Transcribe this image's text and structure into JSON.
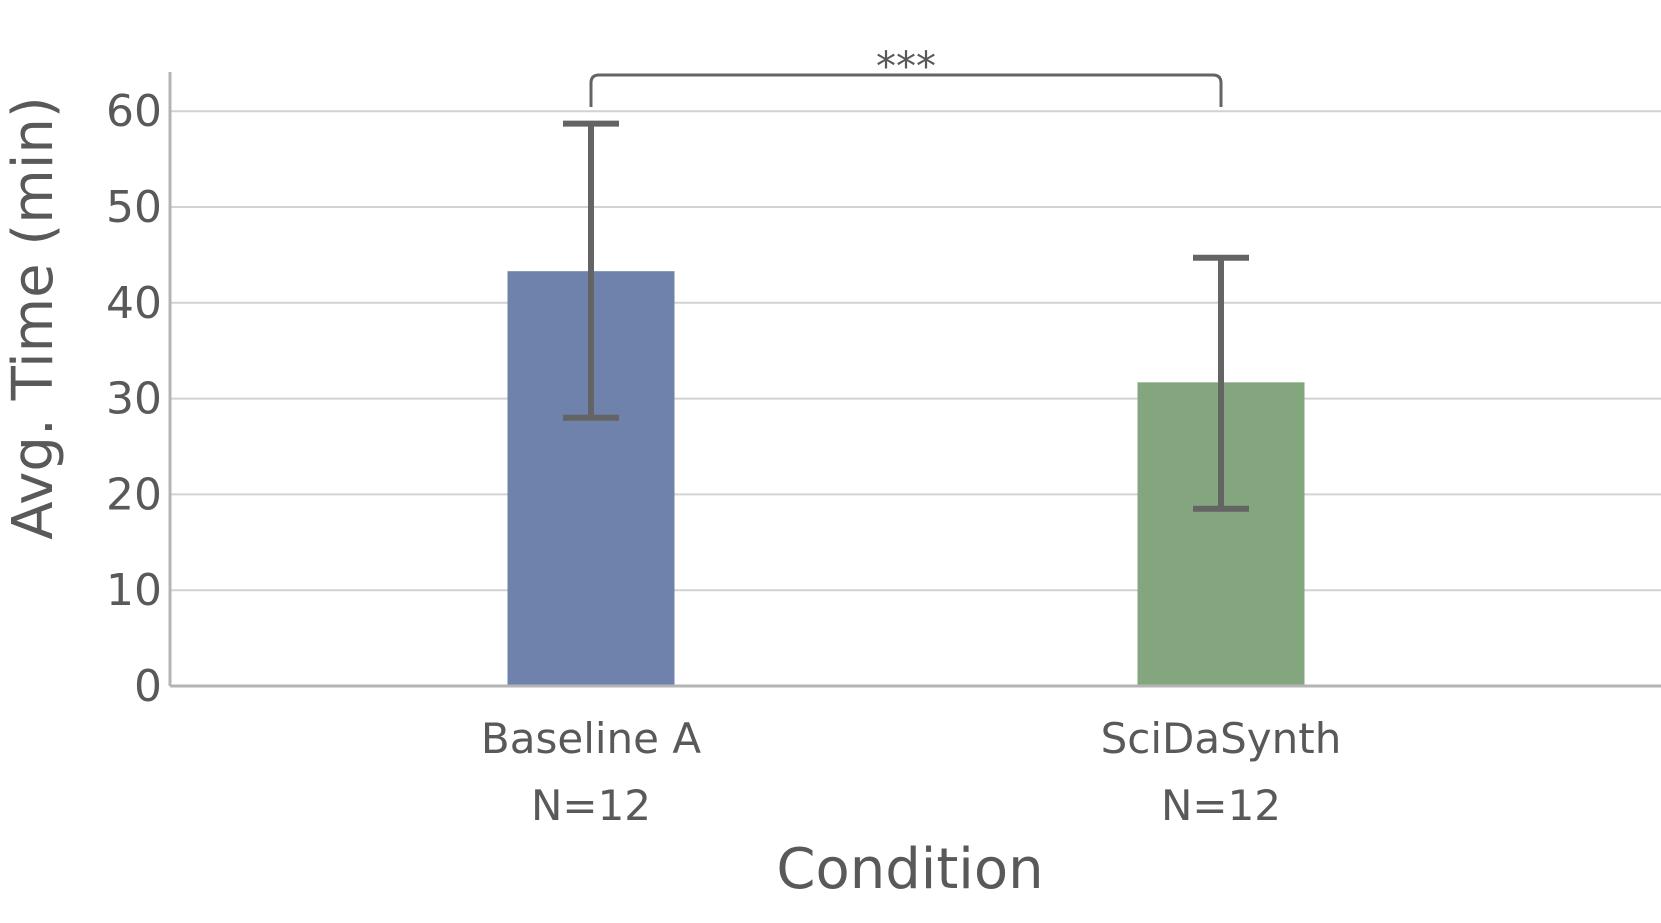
{
  "chart_data": {
    "type": "bar",
    "title": "",
    "xlabel": "Condition",
    "ylabel": "Avg. Time (min)",
    "ylim": [
      0,
      65
    ],
    "yticks": [
      0,
      10,
      20,
      30,
      40,
      50,
      60
    ],
    "grid": true,
    "categories": [
      "Baseline A",
      "SciDaSynth"
    ],
    "category_sublabels": [
      "N=12",
      "N=12"
    ],
    "values": [
      43.3,
      31.7
    ],
    "error_low": [
      28.0,
      18.5
    ],
    "error_high": [
      58.7,
      44.7
    ],
    "colors": [
      "#6e82ab",
      "#84a67f"
    ],
    "significance": {
      "between": [
        0,
        1
      ],
      "label": "***"
    }
  }
}
